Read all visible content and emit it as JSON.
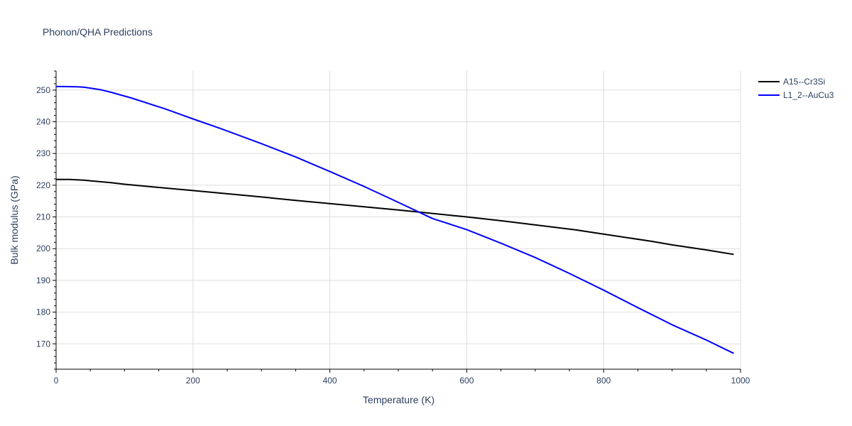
{
  "chart_data": {
    "type": "line",
    "title": "Phonon/QHA Predictions",
    "xlabel": "Temperature (K)",
    "ylabel": "Bulk modulus (GPa)",
    "xlim": [
      0,
      1000
    ],
    "ylim": [
      162,
      256
    ],
    "x_ticks": [
      0,
      200,
      400,
      600,
      800,
      1000
    ],
    "y_ticks": [
      170,
      180,
      190,
      200,
      210,
      220,
      230,
      240,
      250
    ],
    "grid": true,
    "legend_position": "top-right",
    "series": [
      {
        "name": "A15--Cr3Si",
        "color": "#000000",
        "x": [
          0,
          20,
          40,
          60,
          80,
          100,
          150,
          200,
          250,
          300,
          350,
          400,
          450,
          500,
          550,
          600,
          650,
          700,
          760,
          800,
          870,
          900,
          950,
          990
        ],
        "y": [
          221.8,
          221.8,
          221.6,
          221.2,
          220.8,
          220.3,
          219.3,
          218.3,
          217.3,
          216.3,
          215.2,
          214.2,
          213.2,
          212.2,
          211.1,
          210.0,
          208.8,
          207.5,
          205.9,
          204.6,
          202.3,
          201.2,
          199.6,
          198.2
        ]
      },
      {
        "name": "L1_2--AuCu3",
        "color": "#0000ff",
        "x": [
          0,
          10,
          30,
          40,
          50,
          65,
          80,
          110,
          160,
          200,
          240,
          300,
          350,
          400,
          450,
          500,
          550,
          600,
          650,
          700,
          750,
          800,
          850,
          900,
          950,
          990
        ],
        "y": [
          251.1,
          251.1,
          251.0,
          250.9,
          250.6,
          250.1,
          249.3,
          247.5,
          244.0,
          240.9,
          237.9,
          233.1,
          228.9,
          224.3,
          219.6,
          214.6,
          209.5,
          206.0,
          201.7,
          197.2,
          192.2,
          186.9,
          181.4,
          176.0,
          171.2,
          167.0
        ]
      }
    ]
  }
}
